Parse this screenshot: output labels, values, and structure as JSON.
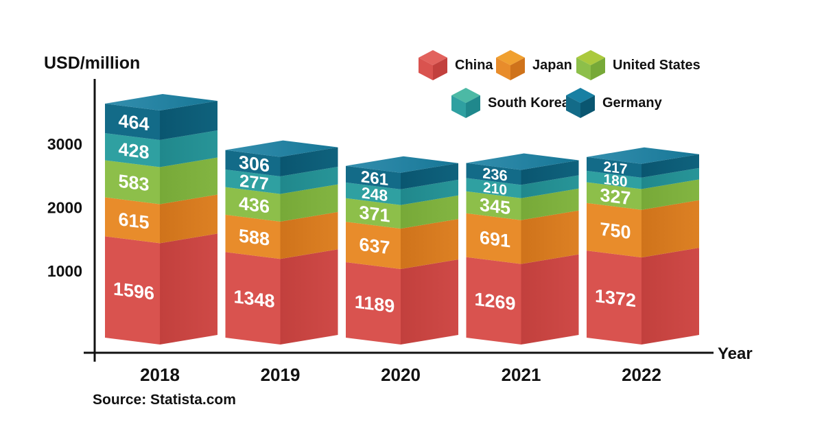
{
  "y_axis": {
    "title": "USD/million",
    "ticks": [
      1000,
      2000,
      3000
    ]
  },
  "x_axis": {
    "title": "Year"
  },
  "source": "Source: Statista.com",
  "chart_data": {
    "type": "bar",
    "stacked": true,
    "style": "3d-isometric",
    "title": "",
    "ylabel": "USD/million",
    "xlabel": "Year",
    "ylim": [
      0,
      3700
    ],
    "grid": false,
    "legend_position": "top-right",
    "categories": [
      "2018",
      "2019",
      "2020",
      "2021",
      "2022"
    ],
    "series": [
      {
        "name": "China",
        "values": [
          1596,
          1348,
          1189,
          1269,
          1372
        ],
        "color": "#D9534F",
        "color_dark": "#C2403D",
        "color_light": "#E2625D"
      },
      {
        "name": "Japan",
        "values": [
          615,
          588,
          637,
          691,
          750
        ],
        "color": "#E88C2B",
        "color_dark": "#CF731B",
        "color_light": "#F0A030"
      },
      {
        "name": "United States",
        "values": [
          583,
          436,
          371,
          345,
          327
        ],
        "color": "#8DBF4A",
        "color_dark": "#77A938",
        "color_light": "#ABC93D"
      },
      {
        "name": "South Korea",
        "values": [
          428,
          277,
          248,
          210,
          180
        ],
        "color": "#2FA0A1",
        "color_dark": "#20888C",
        "color_light": "#4CB9A5"
      },
      {
        "name": "Germany",
        "values": [
          464,
          306,
          261,
          236,
          217
        ],
        "color": "#136B88",
        "color_dark": "#0A5670",
        "color_light": "#1880A3"
      }
    ],
    "legend_rows": [
      [
        "China",
        "Japan",
        "United States"
      ],
      [
        "South Korea",
        "Germany"
      ]
    ]
  }
}
